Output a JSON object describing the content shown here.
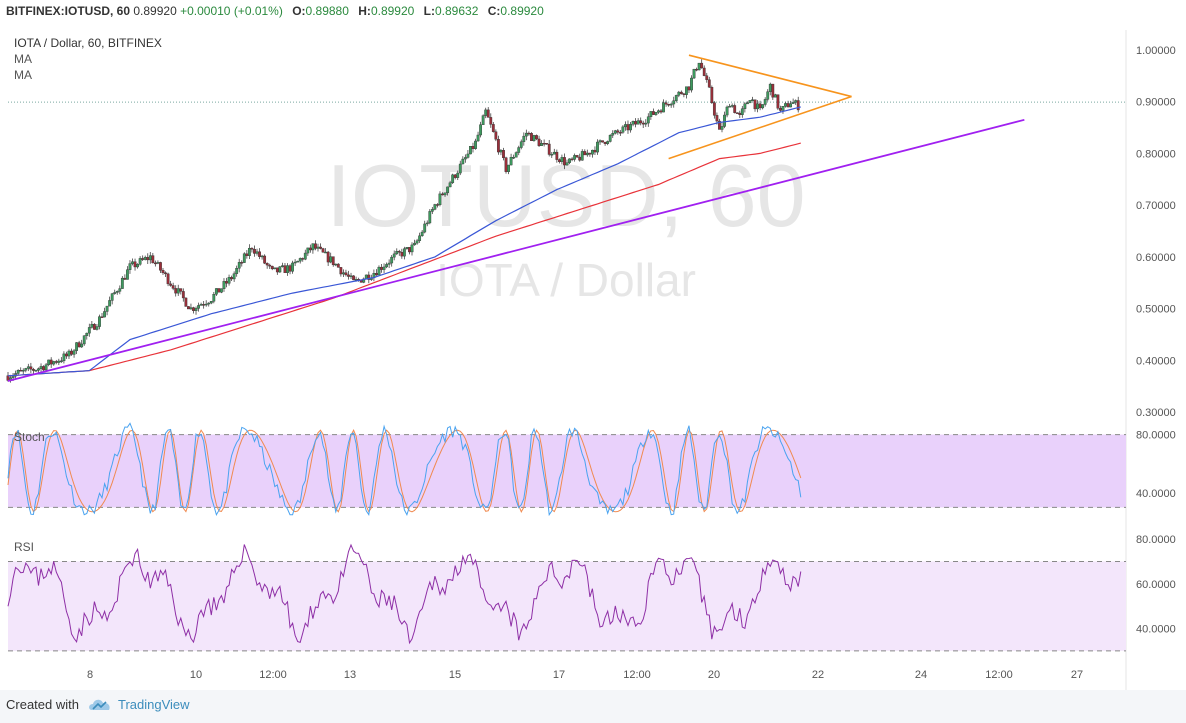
{
  "header": {
    "symbol": "BITFINEX:IOTUSD, 60",
    "last": "0.89920",
    "change": "+0.00010 (+0.01%)",
    "o_label": "O:",
    "o_value": "0.89880",
    "h_label": "H:",
    "h_value": "0.89920",
    "l_label": "L:",
    "l_value": "0.89632",
    "c_label": "C:",
    "c_value": "0.89920"
  },
  "legend": {
    "title": "IOTA / Dollar, 60, BITFINEX",
    "ma1": "MA",
    "ma2": "MA"
  },
  "watermark": {
    "symbol": "IOTUSD, 60",
    "name": "IOTA / Dollar"
  },
  "panes": {
    "stoch_label": "Stoch",
    "rsi_label": "RSI"
  },
  "colors": {
    "bull": "#3d9a5e",
    "bear": "#9a2f3a",
    "ma_fast": "#3a57d6",
    "ma_slow": "#e8333a",
    "trend": "#a020f0",
    "triangle": "#f7941d",
    "stoch_k": "#4aa3f0",
    "stoch_d": "#f08a50",
    "band": "#e9d1fb",
    "rsi_line": "#8e2fa6"
  },
  "chart_data": [
    {
      "type": "candlestick",
      "title": "IOTA / Dollar, 60, BITFINEX",
      "ylim": [
        0.3,
        1.0
      ],
      "ytick_labels": [
        "1.00000",
        "0.90000",
        "0.80000",
        "0.70000",
        "0.60000",
        "0.50000",
        "0.40000",
        "0.30000"
      ],
      "yticks": [
        1.0,
        0.9,
        0.8,
        0.7,
        0.6,
        0.5,
        0.4,
        0.3
      ],
      "last_price": 0.8992,
      "xtick_labels": [
        "8",
        "10",
        "12:00",
        "13",
        "15",
        "17",
        "12:00",
        "20",
        "22",
        "24",
        "12:00",
        "27"
      ],
      "price_keypoints": [
        [
          0,
          0.37
        ],
        [
          3,
          0.385
        ],
        [
          6,
          0.41
        ],
        [
          9,
          0.48
        ],
        [
          12,
          0.58
        ],
        [
          14,
          0.6
        ],
        [
          16,
          0.55
        ],
        [
          18,
          0.5
        ],
        [
          20,
          0.52
        ],
        [
          22,
          0.56
        ],
        [
          24,
          0.62
        ],
        [
          26,
          0.57
        ],
        [
          28,
          0.58
        ],
        [
          30,
          0.62
        ],
        [
          32,
          0.59
        ],
        [
          34,
          0.55
        ],
        [
          36,
          0.57
        ],
        [
          38,
          0.6
        ],
        [
          40,
          0.62
        ],
        [
          42,
          0.7
        ],
        [
          44,
          0.76
        ],
        [
          46,
          0.82
        ],
        [
          47,
          0.88
        ],
        [
          49,
          0.77
        ],
        [
          51,
          0.84
        ],
        [
          53,
          0.81
        ],
        [
          55,
          0.78
        ],
        [
          57,
          0.8
        ],
        [
          59,
          0.83
        ],
        [
          61,
          0.85
        ],
        [
          63,
          0.87
        ],
        [
          65,
          0.9
        ],
        [
          67,
          0.93
        ],
        [
          68,
          0.98
        ],
        [
          69,
          0.92
        ],
        [
          70,
          0.84
        ],
        [
          71,
          0.9
        ],
        [
          72,
          0.87
        ],
        [
          73,
          0.91
        ],
        [
          74,
          0.88
        ],
        [
          75,
          0.93
        ],
        [
          76,
          0.88
        ],
        [
          77,
          0.9
        ],
        [
          78,
          0.89
        ]
      ],
      "ma_fast_keypoints": [
        [
          0,
          0.37
        ],
        [
          8,
          0.38
        ],
        [
          12,
          0.44
        ],
        [
          20,
          0.49
        ],
        [
          28,
          0.53
        ],
        [
          36,
          0.56
        ],
        [
          42,
          0.6
        ],
        [
          48,
          0.67
        ],
        [
          54,
          0.73
        ],
        [
          60,
          0.78
        ],
        [
          66,
          0.84
        ],
        [
          70,
          0.86
        ],
        [
          74,
          0.87
        ],
        [
          78,
          0.89
        ]
      ],
      "ma_slow_keypoints": [
        [
          0,
          0.37
        ],
        [
          8,
          0.38
        ],
        [
          16,
          0.42
        ],
        [
          24,
          0.47
        ],
        [
          32,
          0.52
        ],
        [
          40,
          0.58
        ],
        [
          48,
          0.64
        ],
        [
          56,
          0.69
        ],
        [
          64,
          0.74
        ],
        [
          70,
          0.79
        ],
        [
          74,
          0.8
        ],
        [
          78,
          0.82
        ]
      ],
      "trendline": [
        [
          0,
          0.36
        ],
        [
          100,
          0.865
        ]
      ],
      "triangle_upper": [
        [
          67,
          0.99
        ],
        [
          83,
          0.91
        ]
      ],
      "triangle_lower": [
        [
          65,
          0.79
        ],
        [
          83,
          0.91
        ]
      ],
      "xcount": 110
    },
    {
      "type": "line",
      "title": "Stoch",
      "ylim": [
        20,
        90
      ],
      "ytick_labels": [
        "80.0000",
        "40.0000"
      ],
      "yticks": [
        80,
        40
      ],
      "band": [
        30,
        80
      ]
    },
    {
      "type": "line",
      "title": "RSI",
      "ylim": [
        25,
        85
      ],
      "ytick_labels": [
        "80.0000",
        "60.0000",
        "40.0000"
      ],
      "yticks": [
        80,
        60,
        40
      ],
      "band": [
        30,
        70
      ]
    }
  ]
}
